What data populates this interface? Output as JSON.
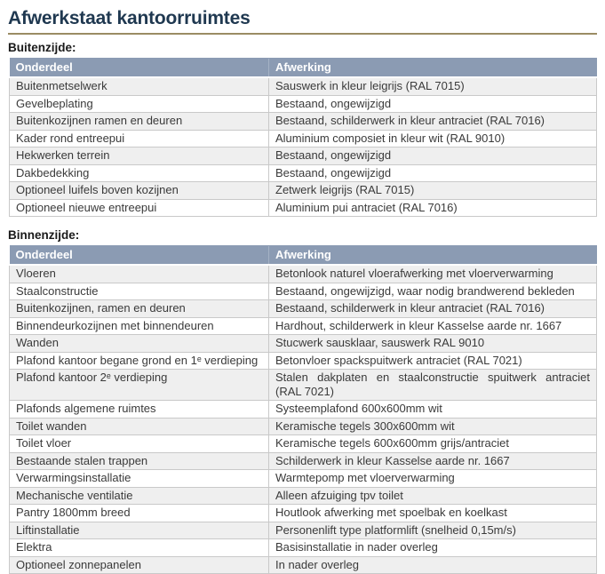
{
  "title": "Afwerkstaat kantoorruimtes",
  "colors": {
    "title_text": "#1f3850",
    "title_rule": "#9a8c64",
    "table_header_bg": "#8b9bb3",
    "table_header_text": "#ffffff",
    "row_band": "#efefef",
    "row_plain": "#ffffff",
    "border": "#c9c9c9",
    "body_text": "#3a3a3a"
  },
  "sections": [
    {
      "label": "Buitenzijde:",
      "columns": [
        "Onderdeel",
        "Afwerking"
      ],
      "rows": [
        {
          "onderdeel": "Buitenmetselwerk",
          "afwerking": "Sauswerk in kleur leigrijs (RAL 7015)"
        },
        {
          "onderdeel": "Gevelbeplating",
          "afwerking": "Bestaand, ongewijzigd"
        },
        {
          "onderdeel": "Buitenkozijnen ramen en deuren",
          "afwerking": "Bestaand, schilderwerk in kleur antraciet (RAL 7016)"
        },
        {
          "onderdeel": "Kader rond entreepui",
          "afwerking": "Aluminium composiet in kleur wit (RAL 9010)"
        },
        {
          "onderdeel": "Hekwerken terrein",
          "afwerking": "Bestaand, ongewijzigd"
        },
        {
          "onderdeel": "Dakbedekking",
          "afwerking": "Bestaand, ongewijzigd"
        },
        {
          "onderdeel": "Optioneel luifels boven kozijnen",
          "afwerking": "Zetwerk leigrijs (RAL 7015)"
        },
        {
          "onderdeel": "Optioneel nieuwe entreepui",
          "afwerking": "Aluminium pui antraciet (RAL 7016)"
        }
      ]
    },
    {
      "label": "Binnenzijde:",
      "columns": [
        "Onderdeel",
        "Afwerking"
      ],
      "rows": [
        {
          "onderdeel": "Vloeren",
          "afwerking": "Betonlook naturel vloerafwerking met vloerverwarming"
        },
        {
          "onderdeel": "Staalconstructie",
          "afwerking": "Bestaand, ongewijzigd, waar nodig brandwerend bekleden"
        },
        {
          "onderdeel": "Buitenkozijnen, ramen en deuren",
          "afwerking": "Bestaand, schilderwerk in kleur antraciet (RAL 7016)"
        },
        {
          "onderdeel": "Binnendeurkozijnen met binnendeuren",
          "afwerking": "Hardhout, schilderwerk in kleur Kasselse aarde nr. 1667"
        },
        {
          "onderdeel": "Wanden",
          "afwerking": "Stucwerk sausklaar, sauswerk RAL 9010"
        },
        {
          "onderdeel": "Plafond kantoor begane grond en 1ᵉ verdieping",
          "afwerking": "Betonvloer spackspuitwerk antraciet (RAL 7021)"
        },
        {
          "onderdeel": "Plafond kantoor 2ᵉ verdieping",
          "afwerking": "Stalen dakplaten en staalconstructie spuitwerk antraciet (RAL 7021)"
        },
        {
          "onderdeel": "Plafonds algemene ruimtes",
          "afwerking": "Systeemplafond 600x600mm wit"
        },
        {
          "onderdeel": "Toilet wanden",
          "afwerking": "Keramische tegels 300x600mm wit"
        },
        {
          "onderdeel": "Toilet vloer",
          "afwerking": "Keramische tegels 600x600mm grijs/antraciet"
        },
        {
          "onderdeel": "Bestaande stalen trappen",
          "afwerking": "Schilderwerk in kleur Kasselse aarde nr. 1667"
        },
        {
          "onderdeel": "Verwarmingsinstallatie",
          "afwerking": "Warmtepomp met vloerverwarming"
        },
        {
          "onderdeel": "Mechanische ventilatie",
          "afwerking": "Alleen afzuiging tpv toilet"
        },
        {
          "onderdeel": "Pantry 1800mm breed",
          "afwerking": "Houtlook afwerking met spoelbak en koelkast"
        },
        {
          "onderdeel": "Liftinstallatie",
          "afwerking": "Personenlift type platformlift (snelheid 0,15m/s)"
        },
        {
          "onderdeel": "Elektra",
          "afwerking": "Basisinstallatie in nader overleg"
        },
        {
          "onderdeel": "Optioneel zonnepanelen",
          "afwerking": "In nader overleg"
        }
      ]
    }
  ]
}
